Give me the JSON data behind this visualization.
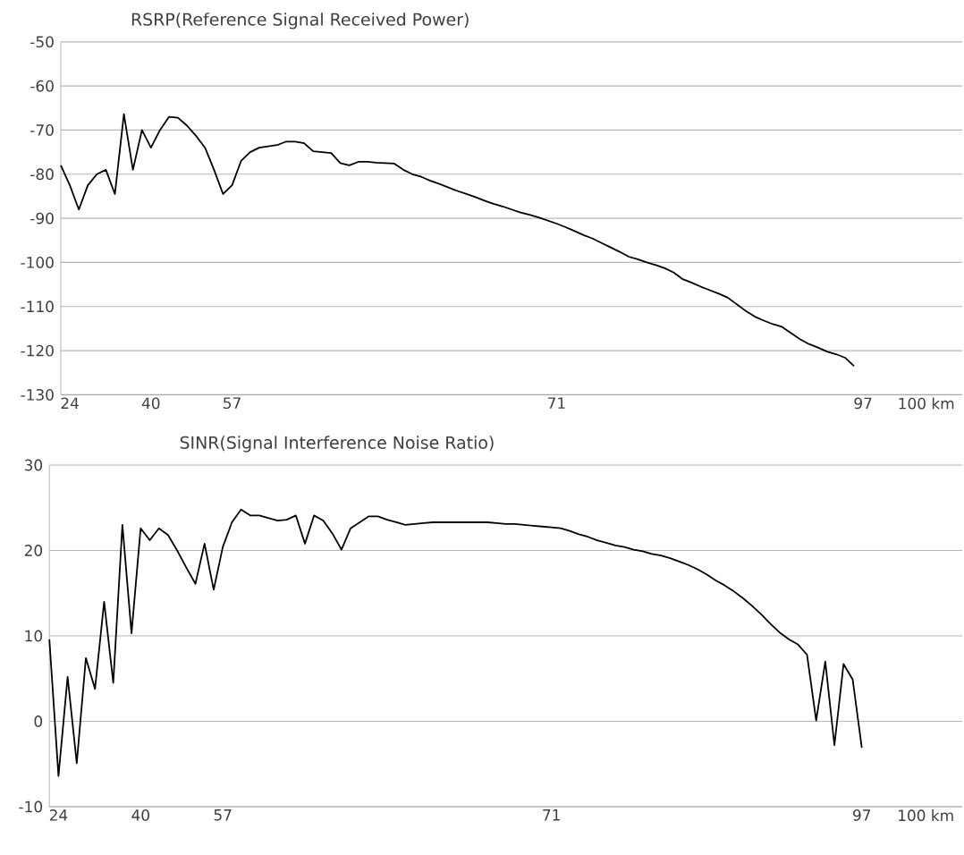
{
  "chart_data": [
    {
      "type": "line",
      "title": "RSRP(Reference Signal Received Power)",
      "color": "#000000",
      "categories": [
        null,
        "24",
        null,
        null,
        null,
        null,
        null,
        null,
        null,
        null,
        "40",
        null,
        null,
        null,
        null,
        null,
        null,
        null,
        null,
        "57",
        null,
        null,
        null,
        null,
        null,
        null,
        null,
        null,
        null,
        null,
        null,
        null,
        null,
        null,
        null,
        null,
        null,
        null,
        null,
        null,
        null,
        null,
        null,
        null,
        null,
        null,
        null,
        null,
        null,
        null,
        null,
        null,
        null,
        null,
        null,
        "71",
        null,
        null,
        null,
        null,
        null,
        null,
        null,
        null,
        null,
        null,
        null,
        null,
        null,
        null,
        null,
        null,
        null,
        null,
        null,
        null,
        null,
        null,
        null,
        null,
        null,
        null,
        null,
        null,
        null,
        null,
        null,
        null,
        null,
        "97",
        null,
        null,
        null,
        null,
        null,
        null,
        "100  km",
        null,
        null,
        null,
        null
      ],
      "values": [
        -78,
        -82.5,
        -88,
        -82.5,
        -80,
        -79,
        -84.5,
        -66.4,
        -79,
        -70,
        -74,
        -70,
        -67,
        -67.2,
        -69,
        -71.3,
        -74,
        -79,
        -84.5,
        -82.5,
        -77,
        -75,
        -74,
        -73.7,
        -73.4,
        -72.6,
        -72.6,
        -73,
        -74.8,
        -75,
        -75.2,
        -77.5,
        -78,
        -77.2,
        -77.2,
        -77.4,
        -77.5,
        -77.6,
        -79,
        -80,
        -80.6,
        -81.5,
        -82.2,
        -83,
        -83.8,
        -84.5,
        -85.2,
        -86,
        -86.7,
        -87.3,
        -88,
        -88.7,
        -89.2,
        -89.8,
        -90.5,
        -91.2,
        -92,
        -92.9,
        -93.8,
        -94.6,
        -95.6,
        -96.6,
        -97.6,
        -98.7,
        -99.3,
        -100,
        -100.6,
        -101.3,
        -102.3,
        -103.8,
        -104.6,
        -105.5,
        -106.3,
        -107.1,
        -108,
        -109.5,
        -111,
        -112.3,
        -113.2,
        -114,
        -114.6,
        -116,
        -117.4,
        -118.5,
        -119.3,
        -120.2,
        -120.8,
        -121.6,
        -123.5,
        null,
        null,
        null,
        null,
        null,
        null,
        null,
        null,
        null,
        null,
        null,
        null
      ],
      "ylim": [
        -130,
        -50
      ],
      "yticks": [
        -130,
        -120,
        -110,
        -100,
        -90,
        -80,
        -70,
        -60,
        -50
      ],
      "grid": "y"
    },
    {
      "type": "line",
      "title": "SINR(Signal Interference Noise Ratio)",
      "color": "#000000",
      "categories": [
        null,
        "24",
        null,
        null,
        null,
        null,
        null,
        null,
        null,
        null,
        "40",
        null,
        null,
        null,
        null,
        null,
        null,
        null,
        null,
        "57",
        null,
        null,
        null,
        null,
        null,
        null,
        null,
        null,
        null,
        null,
        null,
        null,
        null,
        null,
        null,
        null,
        null,
        null,
        null,
        null,
        null,
        null,
        null,
        null,
        null,
        null,
        null,
        null,
        null,
        null,
        null,
        null,
        null,
        null,
        null,
        "71",
        null,
        null,
        null,
        null,
        null,
        null,
        null,
        null,
        null,
        null,
        null,
        null,
        null,
        null,
        null,
        null,
        null,
        null,
        null,
        null,
        null,
        null,
        null,
        null,
        null,
        null,
        null,
        null,
        null,
        null,
        null,
        null,
        null,
        "97",
        null,
        null,
        null,
        null,
        null,
        null,
        "100  km",
        null,
        null,
        null,
        null
      ],
      "values": [
        9.6,
        -6.4,
        5.2,
        -4.9,
        7.4,
        3.8,
        14,
        4.5,
        23,
        10.3,
        22.6,
        21.2,
        22.6,
        21.8,
        20,
        18,
        16.1,
        20.8,
        15.4,
        20.4,
        23.3,
        24.8,
        24.1,
        24.1,
        23.8,
        23.5,
        23.6,
        24.1,
        20.8,
        24.1,
        23.5,
        22,
        20.1,
        22.6,
        23.3,
        24,
        24,
        23.6,
        23.3,
        23,
        23.1,
        23.2,
        23.3,
        23.3,
        23.3,
        23.3,
        23.3,
        23.3,
        23.3,
        23.2,
        23.1,
        23.1,
        23,
        22.9,
        22.8,
        22.7,
        22.6,
        22.3,
        21.9,
        21.6,
        21.2,
        20.9,
        20.6,
        20.4,
        20.1,
        19.9,
        19.6,
        19.4,
        19.1,
        18.7,
        18.3,
        17.8,
        17.2,
        16.5,
        15.9,
        15.2,
        14.4,
        13.5,
        12.5,
        11.4,
        10.4,
        9.6,
        9,
        7.8,
        0.1,
        7.0,
        -2.8,
        6.7,
        4.9,
        -3.1,
        null,
        null,
        null,
        null,
        null,
        null,
        null,
        null,
        null,
        null,
        null
      ],
      "ylim": [
        -10,
        30
      ],
      "yticks": [
        -10,
        0,
        10,
        20,
        30
      ],
      "grid": "y"
    }
  ]
}
